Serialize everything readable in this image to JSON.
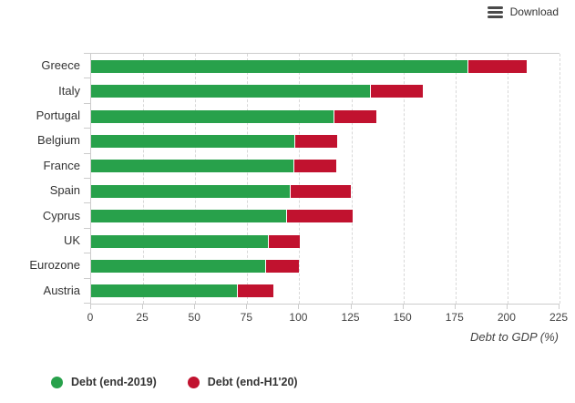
{
  "toolbar": {
    "download_label": "Download"
  },
  "chart_data": {
    "type": "bar",
    "orientation": "horizontal",
    "stacked": true,
    "title": "",
    "xlabel": "Debt to GDP (%)",
    "ylabel": "",
    "xlim": [
      0,
      225
    ],
    "x_ticks": [
      0,
      25,
      50,
      75,
      100,
      125,
      150,
      175,
      200,
      225
    ],
    "grid": "vertical-dashed",
    "legend_position": "bottom-left",
    "categories": [
      "Greece",
      "Italy",
      "Portugal",
      "Belgium",
      "France",
      "Spain",
      "Cyprus",
      "UK",
      "Eurozone",
      "Austria"
    ],
    "series": [
      {
        "name": "Debt (end-2019)",
        "color": "#28a14b",
        "values": [
          180.9,
          133.9,
          116.4,
          97.5,
          97.0,
          95.3,
          93.5,
          84.8,
          83.6,
          70.0
        ]
      },
      {
        "name": "Debt (end-H1'20)",
        "color": "#c1122f",
        "note": "values are bar end points; red segment drawn from end-2019 value to this value",
        "values": [
          209.4,
          159.5,
          137.1,
          118.3,
          117.6,
          124.9,
          125.5,
          100.4,
          99.9,
          87.5
        ]
      }
    ]
  }
}
